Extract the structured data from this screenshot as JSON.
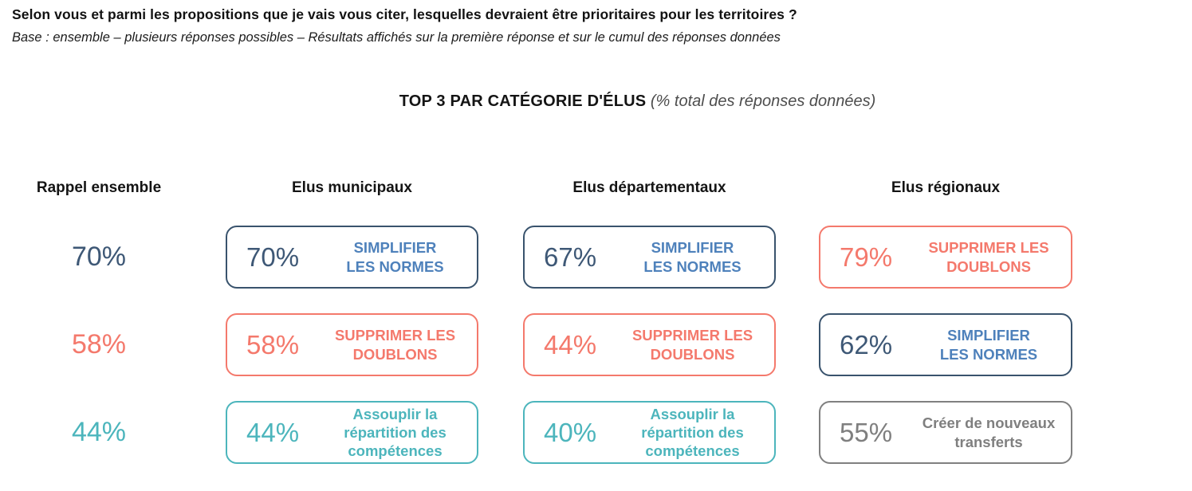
{
  "question": "Selon vous et parmi les propositions que je vais vous citer, lesquelles devraient être prioritaires pour les territoires ?",
  "base_note": "Base : ensemble – plusieurs réponses possibles – Résultats affichés sur la première réponse et sur le cumul des réponses données",
  "section_title": {
    "main": "TOP 3 PAR CATÉGORIE D'ÉLUS",
    "sub": "(% total des réponses données)"
  },
  "colors": {
    "navy_border": "#39536D",
    "navy_value": "#3E5876",
    "navy_label": "#4E81BB",
    "coral": "#F4796C",
    "teal": "#4CB5BC",
    "gray_border": "#808080",
    "gray_text": "#7F7F7F"
  },
  "columns": [
    {
      "header": "Rappel ensemble",
      "items": [
        {
          "value": "70%",
          "theme": "navy"
        },
        {
          "value": "58%",
          "theme": "coral"
        },
        {
          "value": "44%",
          "theme": "teal"
        }
      ]
    },
    {
      "header": "Elus municipaux",
      "items": [
        {
          "value": "70%",
          "label_lines": [
            "SIMPLIFIER",
            "LES NORMES"
          ],
          "theme": "navy"
        },
        {
          "value": "58%",
          "label_lines": [
            "SUPPRIMER LES",
            "DOUBLONS"
          ],
          "theme": "coral"
        },
        {
          "value": "44%",
          "label_lines": [
            "Assouplir la",
            "répartition des",
            "compétences"
          ],
          "theme": "teal"
        }
      ]
    },
    {
      "header": "Elus départementaux",
      "items": [
        {
          "value": "67%",
          "label_lines": [
            "SIMPLIFIER",
            "LES NORMES"
          ],
          "theme": "navy"
        },
        {
          "value": "44%",
          "label_lines": [
            "SUPPRIMER LES",
            "DOUBLONS"
          ],
          "theme": "coral"
        },
        {
          "value": "40%",
          "label_lines": [
            "Assouplir la",
            "répartition des",
            "compétences"
          ],
          "theme": "teal"
        }
      ]
    },
    {
      "header": "Elus régionaux",
      "items": [
        {
          "value": "79%",
          "label_lines": [
            "SUPPRIMER LES",
            "DOUBLONS"
          ],
          "theme": "coral"
        },
        {
          "value": "62%",
          "label_lines": [
            "SIMPLIFIER",
            "LES NORMES"
          ],
          "theme": "navy"
        },
        {
          "value": "55%",
          "label_lines": [
            "Créer de nouveaux",
            "transferts"
          ],
          "theme": "gray"
        }
      ]
    }
  ],
  "chart_data": {
    "type": "table",
    "title": "TOP 3 PAR CATÉGORIE D'ÉLUS",
    "subtitle": "% total des réponses données",
    "categories": [
      "Rappel ensemble",
      "Elus municipaux",
      "Elus départementaux",
      "Elus régionaux"
    ],
    "series": [
      {
        "name": "Rappel ensemble",
        "top3": [
          {
            "rank": 1,
            "proposition": "Simplifier les normes",
            "pct": 70
          },
          {
            "rank": 2,
            "proposition": "Supprimer les doublons",
            "pct": 58
          },
          {
            "rank": 3,
            "proposition": "Assouplir la répartition des compétences",
            "pct": 44
          }
        ]
      },
      {
        "name": "Elus municipaux",
        "top3": [
          {
            "rank": 1,
            "proposition": "Simplifier les normes",
            "pct": 70
          },
          {
            "rank": 2,
            "proposition": "Supprimer les doublons",
            "pct": 58
          },
          {
            "rank": 3,
            "proposition": "Assouplir la répartition des compétences",
            "pct": 44
          }
        ]
      },
      {
        "name": "Elus départementaux",
        "top3": [
          {
            "rank": 1,
            "proposition": "Simplifier les normes",
            "pct": 67
          },
          {
            "rank": 2,
            "proposition": "Supprimer les doublons",
            "pct": 44
          },
          {
            "rank": 3,
            "proposition": "Assouplir la répartition des compétences",
            "pct": 40
          }
        ]
      },
      {
        "name": "Elus régionaux",
        "top3": [
          {
            "rank": 1,
            "proposition": "Supprimer les doublons",
            "pct": 79
          },
          {
            "rank": 2,
            "proposition": "Simplifier les normes",
            "pct": 62
          },
          {
            "rank": 3,
            "proposition": "Créer de nouveaux transferts",
            "pct": 55
          }
        ]
      }
    ]
  }
}
